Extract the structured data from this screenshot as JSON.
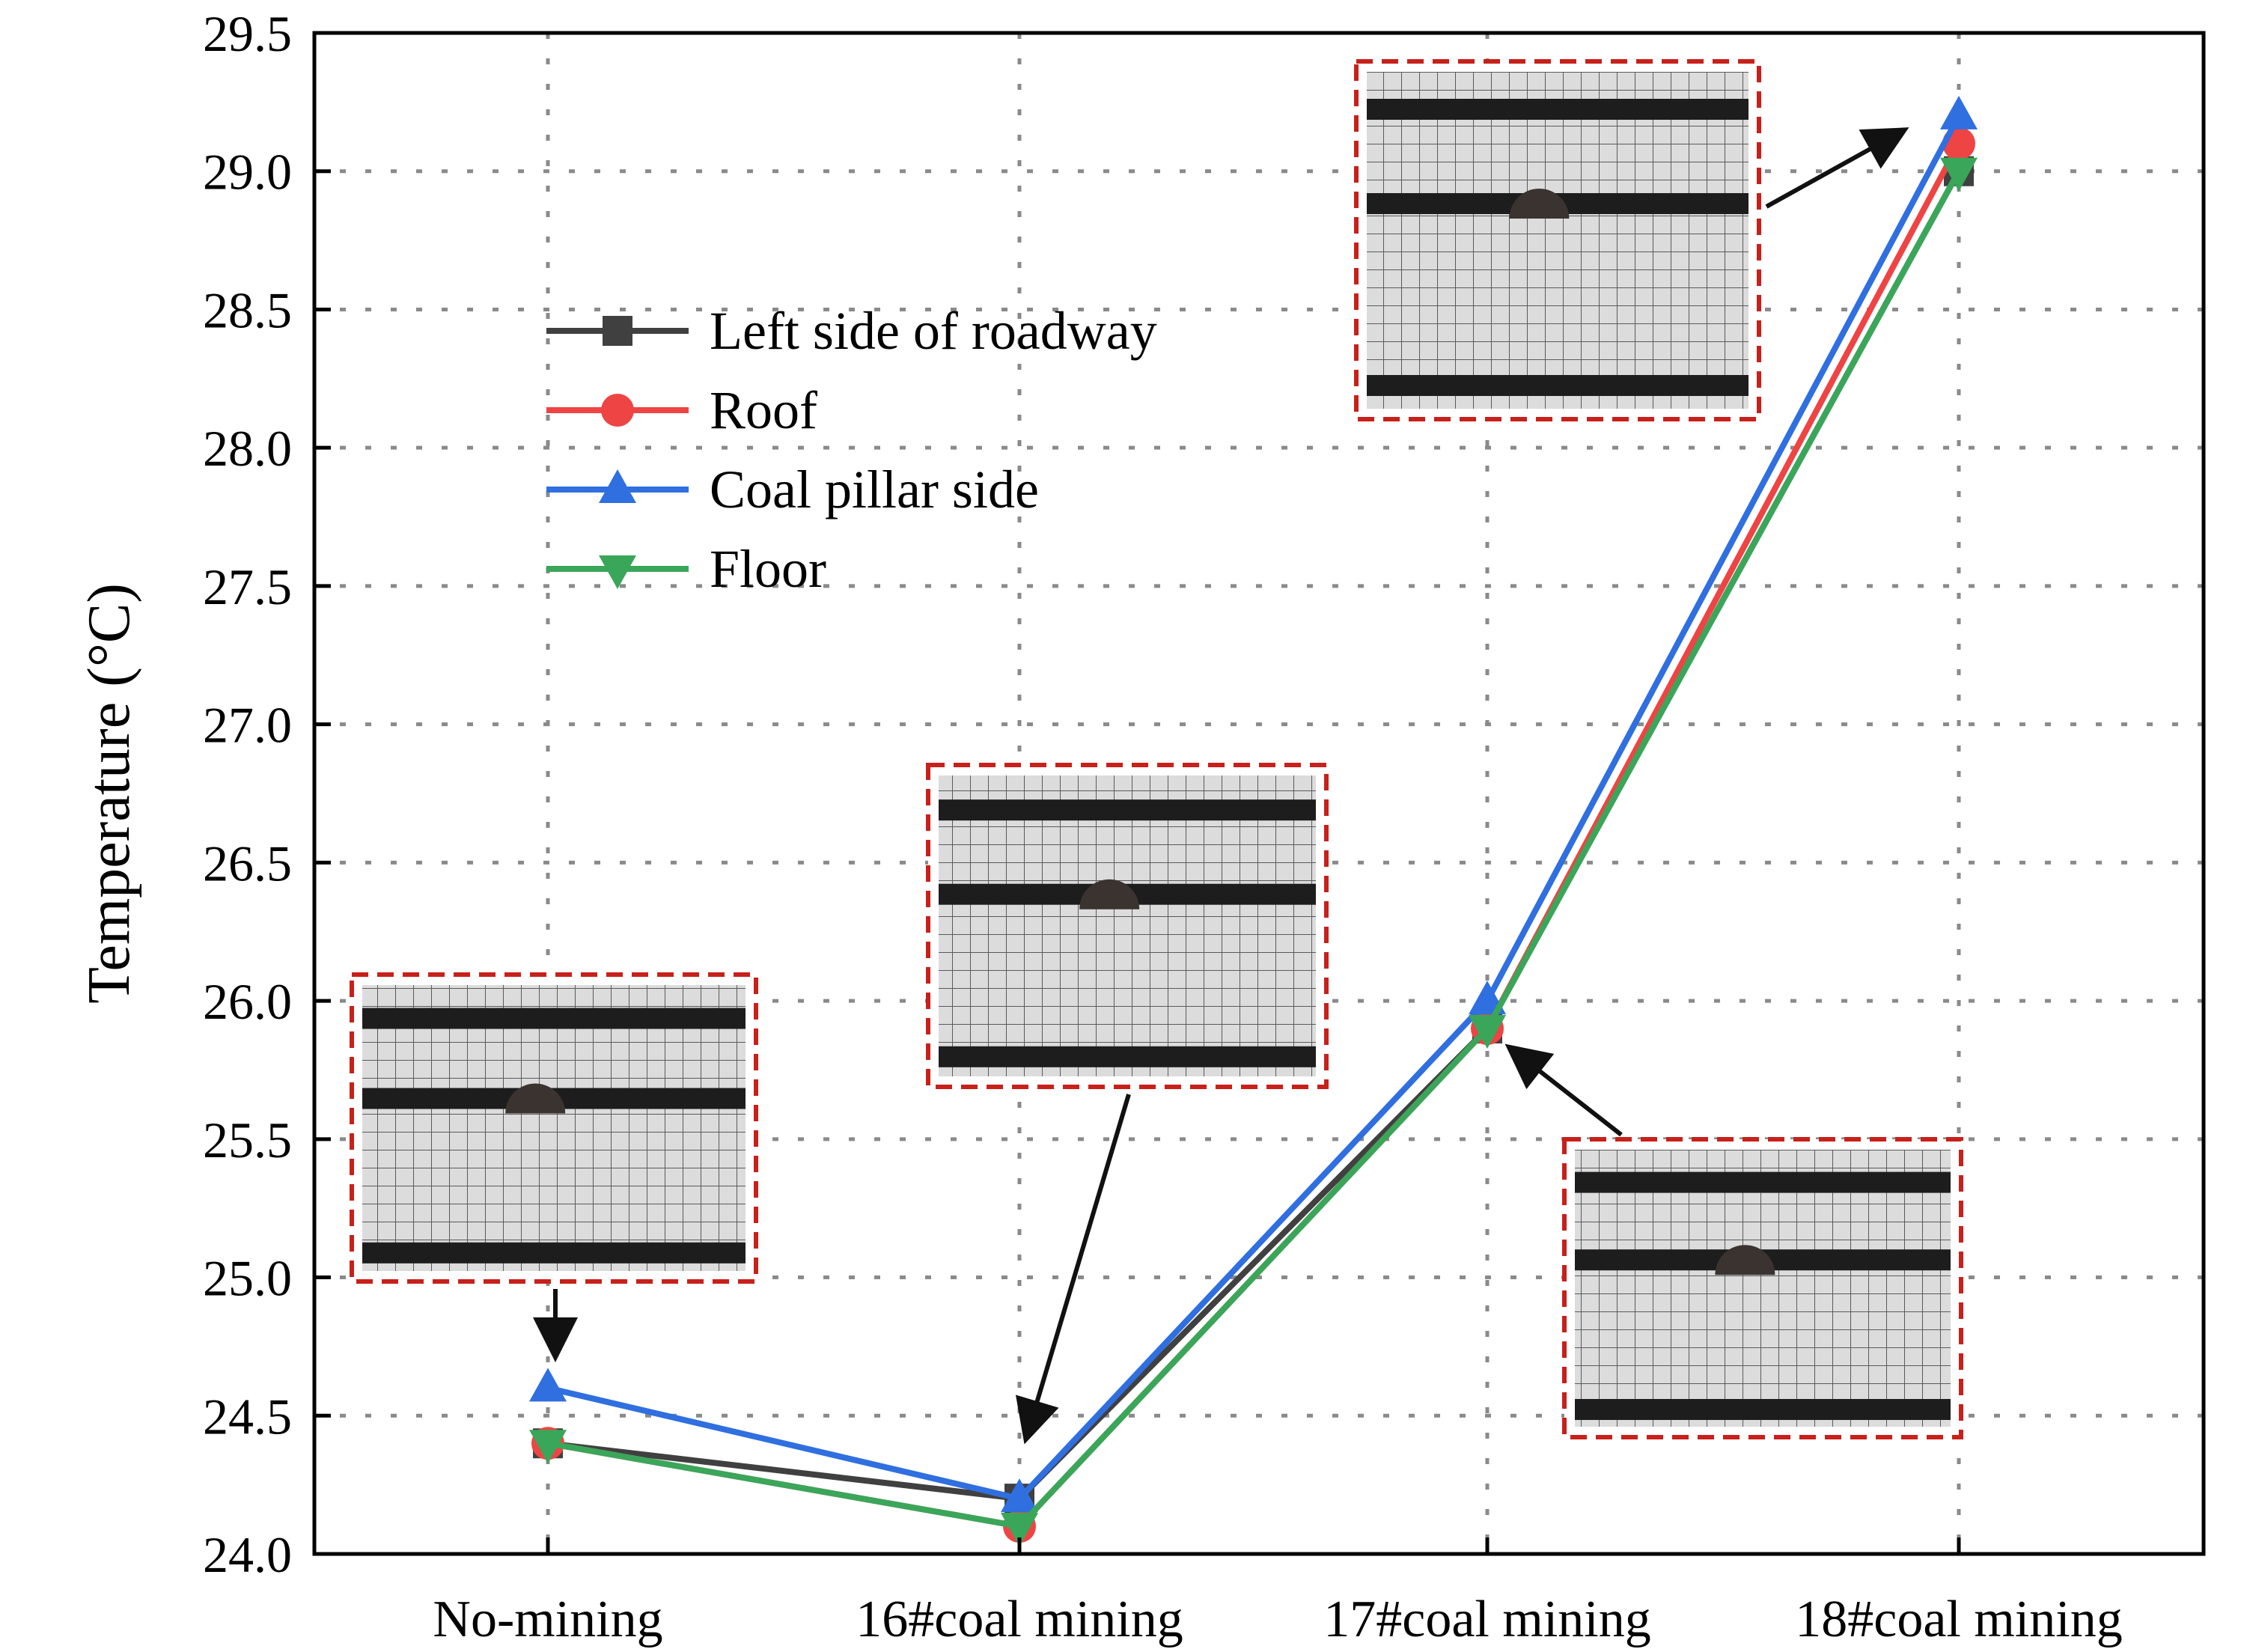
{
  "chart_data": {
    "type": "line",
    "categories": [
      "No-mining",
      "16#coal mining",
      "17#coal mining",
      "18#coal mining"
    ],
    "ylabel": "Temperature (°C)",
    "xlabel": "",
    "ylim": [
      24.0,
      29.5
    ],
    "yticks": [
      "24.0",
      "24.5",
      "25.0",
      "25.5",
      "26.0",
      "26.5",
      "27.0",
      "27.5",
      "28.0",
      "28.5",
      "29.0",
      "29.5"
    ],
    "grid": true,
    "legend_position": "upper-left",
    "series": [
      {
        "name": "Left side of roadway",
        "color": "#404040",
        "marker": "square",
        "values": [
          24.4,
          24.2,
          25.9,
          29.0
        ]
      },
      {
        "name": "Roof",
        "color": "#ee4444",
        "marker": "circle",
        "values": [
          24.4,
          24.1,
          25.9,
          29.1
        ]
      },
      {
        "name": "Coal pillar side",
        "color": "#2f6fe0",
        "marker": "triangle-up",
        "values": [
          24.6,
          24.2,
          26.0,
          29.2
        ]
      },
      {
        "name": "Floor",
        "color": "#3aa65a",
        "marker": "triangle-down",
        "values": [
          24.4,
          24.1,
          25.9,
          29.0
        ]
      }
    ],
    "annotations": [
      {
        "type": "inset-photo",
        "description-icon": "roadway-model-photo-icon",
        "points_to": "No-mining",
        "border_color": "#c8201a"
      },
      {
        "type": "inset-photo",
        "description-icon": "roadway-model-photo-icon",
        "points_to": "16#coal mining",
        "border_color": "#c8201a"
      },
      {
        "type": "inset-photo",
        "description-icon": "roadway-model-photo-icon",
        "points_to": "17#coal mining",
        "border_color": "#c8201a"
      },
      {
        "type": "inset-photo",
        "description-icon": "roadway-model-photo-icon",
        "points_to": "18#coal mining",
        "border_color": "#c8201a"
      }
    ]
  }
}
